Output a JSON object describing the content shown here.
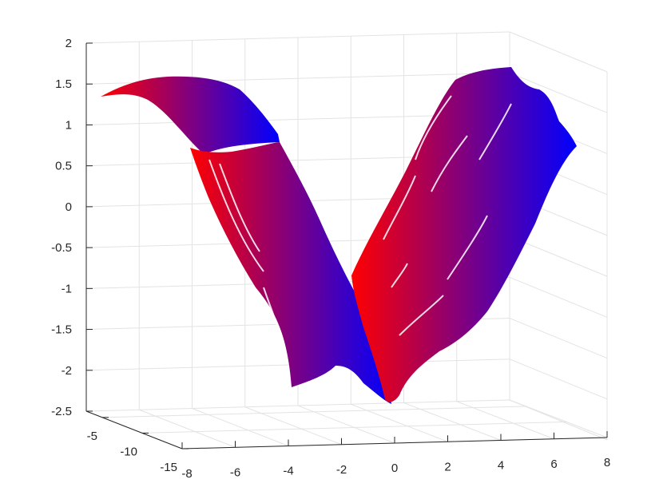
{
  "chart_data": {
    "type": "surface",
    "title": "",
    "xlabel": "",
    "ylabel": "",
    "zlabel": "",
    "grid": true,
    "colormap": [
      "#ff0000",
      "#0000ff"
    ],
    "x_ticks": [
      -8,
      -6,
      -4,
      -2,
      0,
      2,
      4,
      6,
      8
    ],
    "x_tick_labels": [
      "-8",
      "-6",
      "-4",
      "-2",
      "0",
      "2",
      "4",
      "6",
      "8"
    ],
    "y_ticks": [
      -5,
      -10,
      -15
    ],
    "y_tick_labels": [
      "-5",
      "-10",
      "-15"
    ],
    "z_ticks": [
      2,
      1.5,
      1,
      0.5,
      0,
      -0.5,
      -1,
      -1.5,
      -2,
      -2.5
    ],
    "z_tick_labels": [
      "2",
      "1.5",
      "1",
      "0.5",
      "0",
      "-0.5",
      "-1",
      "-1.5",
      "-2",
      "-2.5"
    ],
    "xlim": [
      -8,
      8
    ],
    "ylim": [
      -15,
      -3
    ],
    "zlim": [
      -2.5,
      2
    ],
    "series": [
      {
        "color": "#ff0000",
        "x": [
          -8.0,
          -7.0,
          -6.0,
          -5.0,
          -4.0,
          -3.0,
          -2.0,
          -1.0,
          0.0,
          1.0,
          2.0,
          3.0,
          4.0,
          5.0,
          6.0,
          7.0
        ],
        "z": [
          1.4,
          1.6,
          1.5,
          0.7,
          -0.4,
          -1.3,
          -2.0,
          -1.9,
          -1.5,
          -0.8,
          0.0,
          0.7,
          1.3,
          1.6,
          1.7,
          1.5
        ]
      },
      {
        "color": "#0000ff",
        "x": [
          -8.0,
          -7.0,
          -6.0,
          -5.0,
          -4.0,
          -3.0,
          -2.0,
          -1.0,
          0.0,
          1.0,
          2.0,
          3.0,
          4.0,
          5.0,
          6.0,
          7.0
        ],
        "z": [
          1.3,
          1.6,
          1.4,
          0.9,
          0.2,
          -0.6,
          -1.3,
          -2.0,
          -2.4,
          -2.0,
          -1.5,
          -0.8,
          0.0,
          0.7,
          1.2,
          1.1
        ]
      }
    ]
  }
}
